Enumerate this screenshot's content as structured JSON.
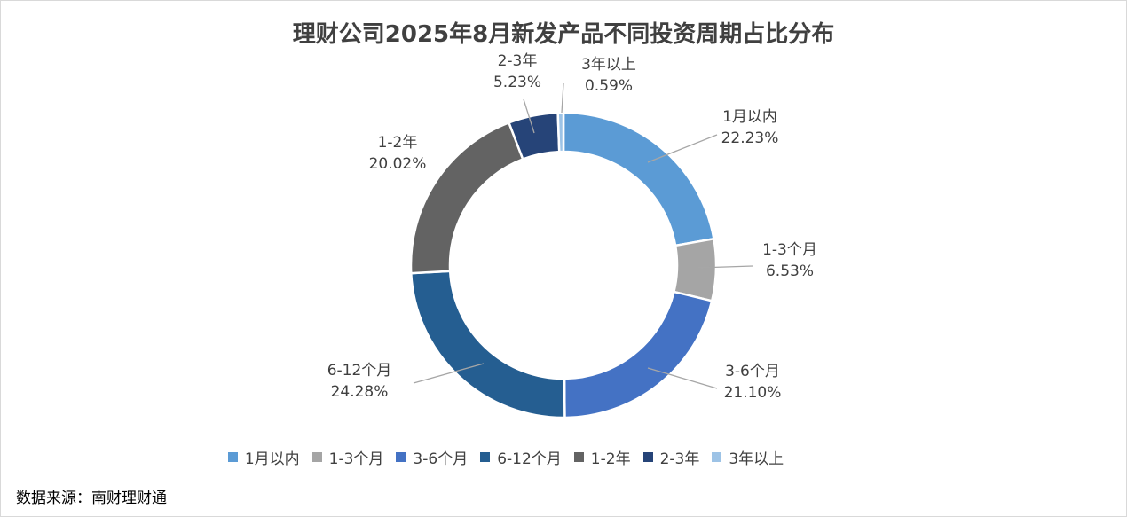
{
  "chart_data": {
    "type": "pie",
    "donut": true,
    "title": "理财公司2025年8月新发产品不同投资周期占比分布",
    "categories": [
      "1月以内",
      "1-3个月",
      "3-6个月",
      "6-12个月",
      "1-2年",
      "2-3年",
      "3年以上"
    ],
    "values": [
      22.23,
      6.53,
      21.1,
      24.28,
      20.02,
      5.23,
      0.59
    ],
    "value_labels": [
      "22.23%",
      "6.53%",
      "21.10%",
      "24.28%",
      "20.02%",
      "5.23%",
      "0.59%"
    ],
    "colors": [
      "#5b9bd5",
      "#a5a5a5",
      "#4472c4",
      "#255e91",
      "#636363",
      "#264478",
      "#9dc3e6"
    ],
    "legend_position": "bottom",
    "source": "数据来源：南财理财通"
  }
}
